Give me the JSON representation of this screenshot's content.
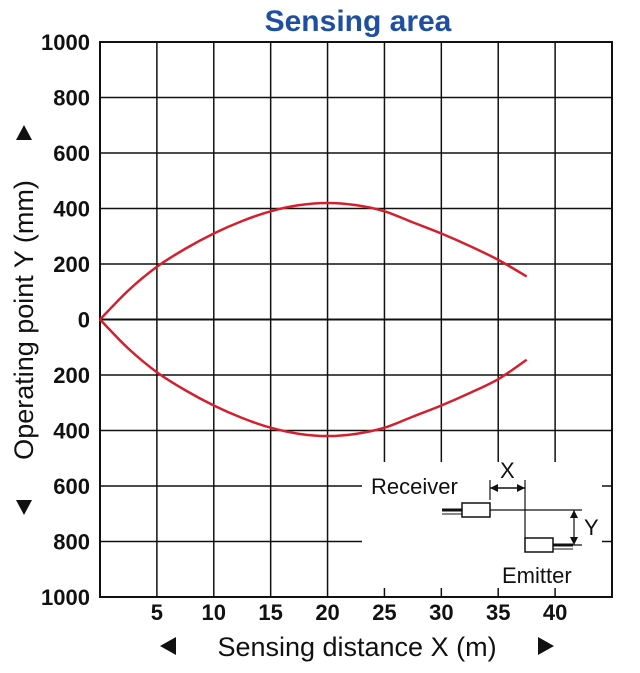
{
  "chart_data": {
    "type": "line",
    "title": "Sensing area",
    "xlabel": "Sensing distance X (m)",
    "ylabel": "Operating point Y (mm)",
    "x_ticks": [
      "5",
      "10",
      "15",
      "20",
      "25",
      "30",
      "35",
      "40"
    ],
    "y_ticks": [
      "1000",
      "800",
      "600",
      "400",
      "200",
      "0",
      "200",
      "400",
      "600",
      "800",
      "1000"
    ],
    "xlim": [
      0,
      45
    ],
    "ylim": [
      -1000,
      1000
    ],
    "grid": true,
    "series": [
      {
        "points": [
          [
            0,
            0
          ],
          [
            2.5,
            105
          ],
          [
            5,
            190
          ],
          [
            7.5,
            255
          ],
          [
            10,
            310
          ],
          [
            12.5,
            355
          ],
          [
            15,
            390
          ],
          [
            17.5,
            412
          ],
          [
            20,
            420
          ],
          [
            22.5,
            412
          ],
          [
            25,
            390
          ],
          [
            27.5,
            350
          ],
          [
            30,
            310
          ],
          [
            32.5,
            265
          ],
          [
            35,
            215
          ],
          [
            37.5,
            155
          ]
        ]
      },
      {
        "points": [
          [
            0,
            0
          ],
          [
            2.5,
            -105
          ],
          [
            5,
            -190
          ],
          [
            7.5,
            -255
          ],
          [
            10,
            -310
          ],
          [
            12.5,
            -355
          ],
          [
            15,
            -390
          ],
          [
            17.5,
            -412
          ],
          [
            20,
            -420
          ],
          [
            22.5,
            -412
          ],
          [
            25,
            -390
          ],
          [
            27.5,
            -350
          ],
          [
            30,
            -310
          ],
          [
            32.5,
            -265
          ],
          [
            35,
            -215
          ],
          [
            37.5,
            -145
          ]
        ]
      }
    ],
    "colors": {
      "curve": "#d4202e",
      "title": "#1f4fa0",
      "grid": "#111111"
    }
  },
  "diagram": {
    "receiver_label": "Receiver",
    "emitter_label": "Emitter",
    "x_label": "X",
    "y_label": "Y"
  }
}
